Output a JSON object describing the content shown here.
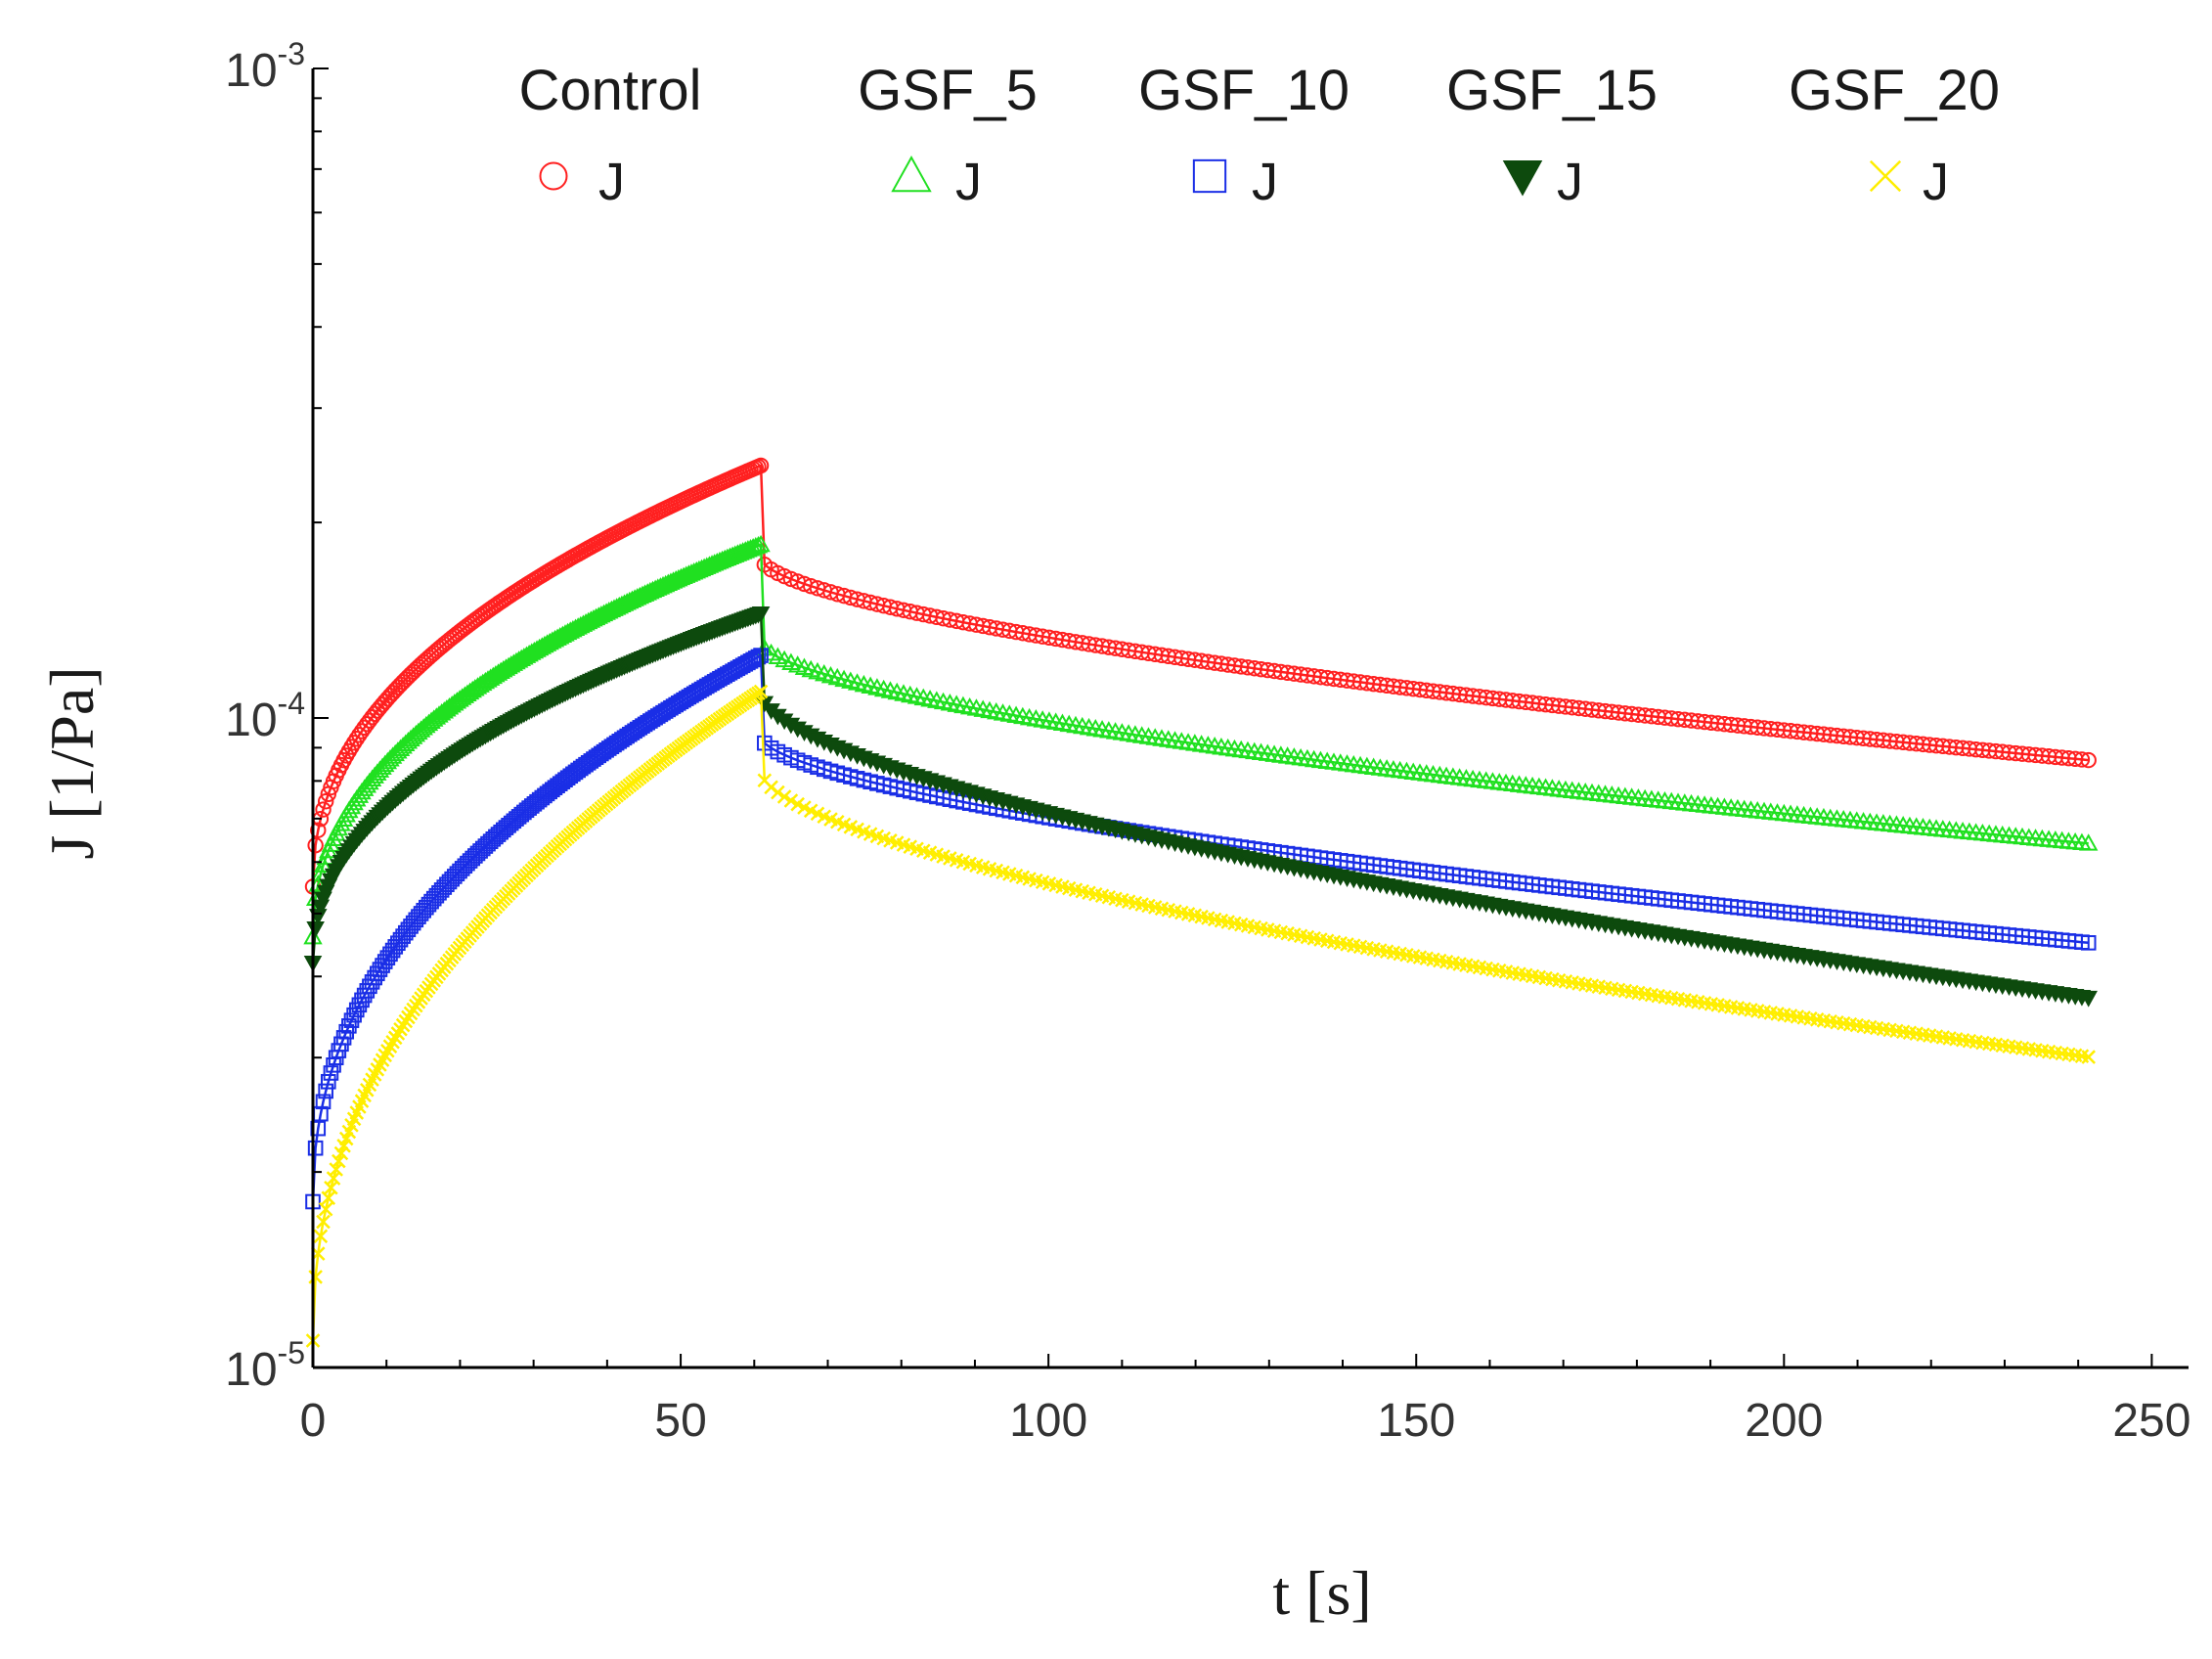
{
  "chart_data": {
    "type": "scatter",
    "title": "",
    "xlabel": "t [s]",
    "ylabel": "J [1/Pa]",
    "xlim": [
      0,
      255
    ],
    "ylim": [
      1e-05,
      0.001
    ],
    "yscale": "log",
    "x_ticks": [
      0,
      50,
      100,
      150,
      200,
      250
    ],
    "y_ticks": [
      {
        "value": 1e-05,
        "base": "10",
        "exp": "-5"
      },
      {
        "value": 0.0001,
        "base": "10",
        "exp": "-4"
      },
      {
        "value": 0.001,
        "base": "10",
        "exp": "-3"
      }
    ],
    "legend_placement": "top",
    "phases": {
      "creep_end_s": 61,
      "recovery_end_s": 242
    },
    "series": [
      {
        "name": "Control",
        "label": "J",
        "marker": "circle",
        "color": "#ff2020",
        "creep": {
          "start": 5.5e-05,
          "end": 0.000245
        },
        "recovery": {
          "start": 0.000175,
          "end": 8.6e-05
        }
      },
      {
        "name": "GSF_5",
        "label": "J",
        "marker": "triangle-up",
        "color": "#20e020",
        "creep": {
          "start": 4.6e-05,
          "end": 0.000185
        },
        "recovery": {
          "start": 0.00013,
          "end": 6.4e-05
        }
      },
      {
        "name": "GSF_10",
        "label": "J",
        "marker": "square",
        "color": "#1a2ee6",
        "creep": {
          "start": 1.8e-05,
          "end": 0.000125
        },
        "recovery": {
          "start": 9.3e-05,
          "end": 4.5e-05
        }
      },
      {
        "name": "GSF_15",
        "label": "J",
        "marker": "triangle-down",
        "color": "#0d4a0d",
        "creep": {
          "start": 4.2e-05,
          "end": 0.000145
        },
        "recovery": {
          "start": 0.000108,
          "end": 3.7e-05
        }
      },
      {
        "name": "GSF_20",
        "label": "J",
        "marker": "x",
        "color": "#ffee00",
        "creep": {
          "start": 1.1e-05,
          "end": 0.00011
        },
        "recovery": {
          "start": 8.2e-05,
          "end": 3e-05
        }
      }
    ]
  }
}
